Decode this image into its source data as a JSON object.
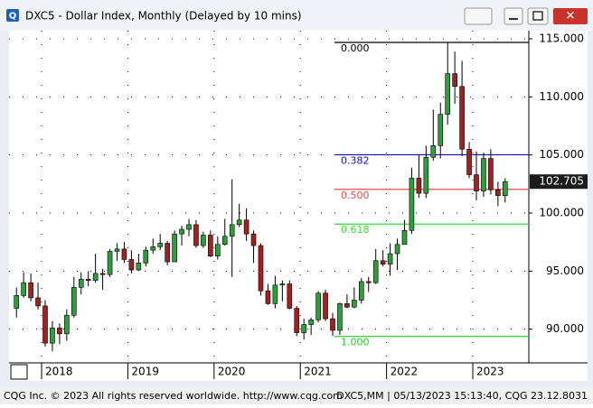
{
  "chart_data": {
    "type": "candlestick",
    "title": "DXC5 - Dollar Index, Monthly (Delayed by 10 mins)",
    "categories": [
      null,
      null,
      null,
      null,
      "2018",
      null,
      null,
      null,
      null,
      null,
      null,
      null,
      null,
      null,
      null,
      null,
      "2019",
      null,
      null,
      null,
      null,
      null,
      null,
      null,
      null,
      null,
      null,
      null,
      "2020",
      null,
      null,
      null,
      null,
      null,
      null,
      null,
      null,
      null,
      null,
      null,
      "2021",
      null,
      null,
      null,
      null,
      null,
      null,
      null,
      null,
      null,
      null,
      null,
      "2022",
      null,
      null,
      null,
      null,
      null,
      null,
      null,
      null,
      null,
      null,
      null,
      "2023",
      null,
      null,
      null,
      null
    ],
    "series": [
      {
        "open": [
          91.8,
          92.9,
          94.0,
          92.7,
          92.0,
          88.8,
          90.1,
          89.6,
          91.2,
          93.6,
          94.3,
          94.2,
          94.8,
          94.7,
          96.7,
          96.9,
          96.0,
          95.1,
          95.7,
          96.8,
          97.1,
          97.4,
          95.8,
          98.2,
          98.6,
          99.0,
          97.2,
          98.1,
          96.3,
          97.3,
          98.0,
          99.0,
          99.4,
          98.2,
          97.2,
          93.3,
          92.2,
          93.8,
          93.9,
          91.8,
          89.7,
          90.4,
          90.8,
          93.1,
          90.9,
          89.9,
          92.2,
          91.9,
          92.5,
          94.1,
          94.0,
          95.9,
          95.6,
          96.5,
          97.3,
          98.5,
          103.0,
          101.7,
          104.8,
          105.8,
          108.5,
          112.0,
          110.9,
          105.5,
          103.3,
          101.9,
          104.7,
          102.0,
          101.5
        ],
        "high": [
          93.6,
          94.9,
          94.8,
          94.0,
          92.5,
          90.7,
          90.5,
          91.7,
          94.5,
          94.9,
          95.0,
          96.5,
          95.2,
          96.9,
          97.4,
          97.5,
          96.8,
          96.5,
          97.1,
          97.8,
          98.2,
          97.6,
          98.5,
          98.9,
          99.5,
          99.4,
          98.4,
          98.5,
          98.0,
          99.5,
          102.9,
          100.8,
          100.4,
          98.5,
          97.4,
          93.9,
          94.6,
          94.2,
          94.2,
          92.0,
          90.9,
          91.0,
          93.3,
          93.4,
          91.4,
          92.3,
          93.0,
          93.6,
          94.4,
          94.5,
          96.9,
          96.8,
          97.4,
          97.8,
          99.4,
          103.9,
          105.0,
          105.8,
          108.9,
          109.5,
          114.7,
          113.9,
          113.1,
          106.1,
          105.3,
          105.2,
          105.5,
          102.7,
          103.0
        ],
        "low": [
          91.0,
          92.7,
          92.4,
          91.7,
          88.5,
          88.1,
          88.7,
          89.0,
          91.0,
          93.0,
          93.7,
          94.0,
          93.4,
          94.5,
          95.9,
          95.7,
          94.8,
          95.0,
          95.4,
          96.5,
          96.8,
          95.5,
          95.8,
          97.2,
          98.0,
          97.0,
          97.0,
          96.2,
          96.0,
          97.2,
          94.5,
          98.8,
          97.6,
          95.7,
          92.9,
          92.1,
          91.8,
          92.4,
          91.7,
          89.4,
          89.1,
          89.5,
          90.6,
          90.7,
          89.4,
          89.5,
          91.8,
          91.8,
          92.2,
          93.2,
          93.9,
          95.4,
          94.6,
          95.1,
          97.3,
          98.2,
          101.3,
          101.3,
          104.5,
          104.7,
          107.6,
          109.4,
          104.9,
          103.0,
          101.1,
          101.4,
          101.6,
          100.6,
          100.9
        ],
        "close": [
          92.9,
          94.0,
          92.7,
          92.0,
          88.8,
          90.1,
          89.6,
          91.2,
          93.6,
          94.3,
          94.2,
          94.8,
          94.7,
          96.7,
          96.9,
          96.0,
          95.1,
          95.7,
          96.8,
          97.1,
          97.4,
          95.8,
          98.2,
          98.6,
          99.0,
          97.2,
          98.1,
          96.3,
          97.3,
          98.0,
          99.0,
          99.4,
          98.2,
          97.2,
          93.3,
          92.2,
          93.8,
          93.9,
          91.8,
          89.7,
          90.4,
          90.8,
          93.1,
          90.9,
          89.9,
          92.2,
          91.9,
          92.5,
          94.1,
          94.0,
          95.9,
          95.6,
          96.5,
          97.3,
          98.5,
          103.0,
          101.7,
          104.8,
          105.8,
          108.5,
          112.0,
          110.9,
          105.5,
          103.3,
          101.9,
          104.7,
          102.0,
          101.5,
          102.705
        ]
      }
    ],
    "up_color": "#2e9e3a",
    "down_color": "#a32020",
    "ylim": [
      87.1,
      115.7
    ],
    "yticks": [
      {
        "value": 90,
        "label": "90.000"
      },
      {
        "value": 95,
        "label": "95.000"
      },
      {
        "value": 100,
        "label": "100.000"
      },
      {
        "value": 105,
        "label": "105.000"
      },
      {
        "value": 110,
        "label": "110.000"
      },
      {
        "value": 115,
        "label": "115.000"
      }
    ],
    "grid": true,
    "last_price": 102.705,
    "annotations": [
      {
        "label": "0.000",
        "value": 114.69,
        "color": "#000000"
      },
      {
        "label": "0.382",
        "value": 105.02,
        "color": "#1010b0"
      },
      {
        "label": "0.500",
        "value": 102.04,
        "color": "#e05050"
      },
      {
        "label": "0.618",
        "value": 99.05,
        "color": "#33dd33"
      },
      {
        "label": "1.000",
        "value": 89.38,
        "color": "#22cc22"
      }
    ],
    "status_left": "CQG Inc. © 2023 All rights reserved worldwide. http://www.cqg.com",
    "status_right": "DXC5,MM | 05/13/2023 15:13:40, CQG 23.12.8031"
  }
}
